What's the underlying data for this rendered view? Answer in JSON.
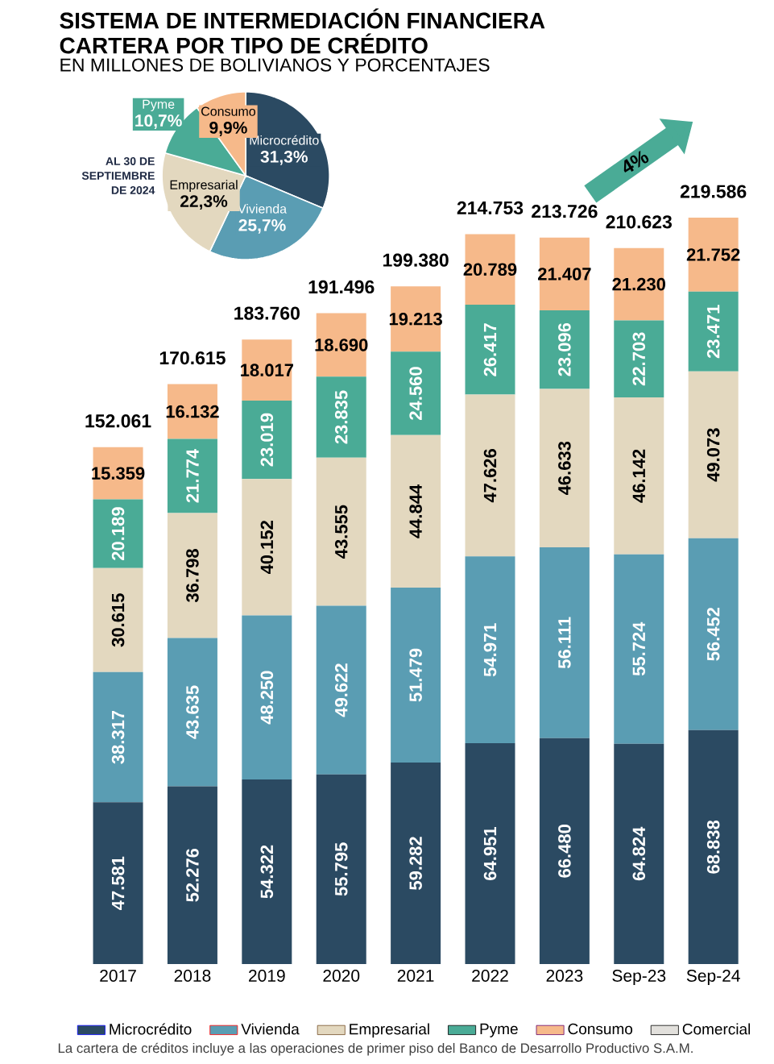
{
  "chart_data": [
    {
      "type": "bar",
      "stacked": true,
      "title": "SISTEMA DE INTERMEDIACIÓN FINANCIERA CARTERA POR TIPO DE CRÉDITO",
      "subtitle": "EN MILLONES DE BOLIVIANOS Y PORCENTAJES",
      "categories": [
        "2017",
        "2018",
        "2019",
        "2020",
        "2021",
        "2022",
        "2023",
        "Sep-23",
        "Sep-24"
      ],
      "series": [
        {
          "name": "Microcrédito",
          "color": "#2b4a62",
          "values": [
            47581,
            52276,
            54322,
            55795,
            59282,
            64951,
            66480,
            64824,
            68838
          ],
          "value_labels": [
            "47.581",
            "52.276",
            "54.322",
            "55.795",
            "59.282",
            "64.951",
            "66.480",
            "64.824",
            "68.838"
          ]
        },
        {
          "name": "Vivienda",
          "color": "#5a9db3",
          "values": [
            38317,
            43635,
            48250,
            49622,
            51479,
            54971,
            56111,
            55724,
            56452
          ],
          "value_labels": [
            "38.317",
            "43.635",
            "48.250",
            "49.622",
            "51.479",
            "54.971",
            "56.111",
            "55.724",
            "56.452"
          ]
        },
        {
          "name": "Empresarial",
          "color": "#e3d8bf",
          "values": [
            30615,
            36798,
            40152,
            43555,
            44844,
            47626,
            46633,
            46142,
            49073
          ],
          "value_labels": [
            "30.615",
            "36.798",
            "40.152",
            "43.555",
            "44.844",
            "47.626",
            "46.633",
            "46.142",
            "49.073"
          ]
        },
        {
          "name": "Pyme",
          "color": "#4aab96",
          "values": [
            20189,
            21774,
            23019,
            23835,
            24560,
            26417,
            23096,
            22703,
            23471
          ],
          "value_labels": [
            "20.189",
            "21.774",
            "23.019",
            "23.835",
            "24.560",
            "26.417",
            "23.096",
            "22.703",
            "23.471"
          ]
        },
        {
          "name": "Consumo",
          "color": "#f6b98a",
          "values": [
            15359,
            16132,
            18017,
            18690,
            19213,
            20789,
            21407,
            21230,
            21752
          ],
          "value_labels": [
            "15.359",
            "16.132",
            "18.017",
            "18.690",
            "19.213",
            "20.789",
            "21.407",
            "21.230",
            "21.752"
          ]
        },
        {
          "name": "Comercial",
          "color": "#e2e0dc",
          "values": [
            null,
            null,
            null,
            null,
            null,
            null,
            null,
            null,
            null
          ]
        }
      ],
      "totals": [
        "152.061",
        "170.615",
        "183.760",
        "191.496",
        "199.380",
        "214.753",
        "213.726",
        "210.623",
        "219.586"
      ],
      "legend": "bottom",
      "annotations": [
        "4%",
        "La cartera de créditos incluye a las operaciones de primer piso del Banco de Desarrollo Productivo S.A.M."
      ]
    },
    {
      "type": "pie",
      "title": "AL 30 DE SEPTIEMBRE DE 2024",
      "categories": [
        "Microcrédito",
        "Vivienda",
        "Empresarial",
        "Pyme",
        "Consumo"
      ],
      "values": [
        31.3,
        25.7,
        22.3,
        10.7,
        9.9
      ],
      "value_labels": [
        "31,3%",
        "25,7%",
        "22,3%",
        "10,7%",
        "9,9%"
      ],
      "colors": [
        "#2b4a62",
        "#5a9db3",
        "#e3d8bf",
        "#4aab96",
        "#f6b98a"
      ]
    }
  ]
}
